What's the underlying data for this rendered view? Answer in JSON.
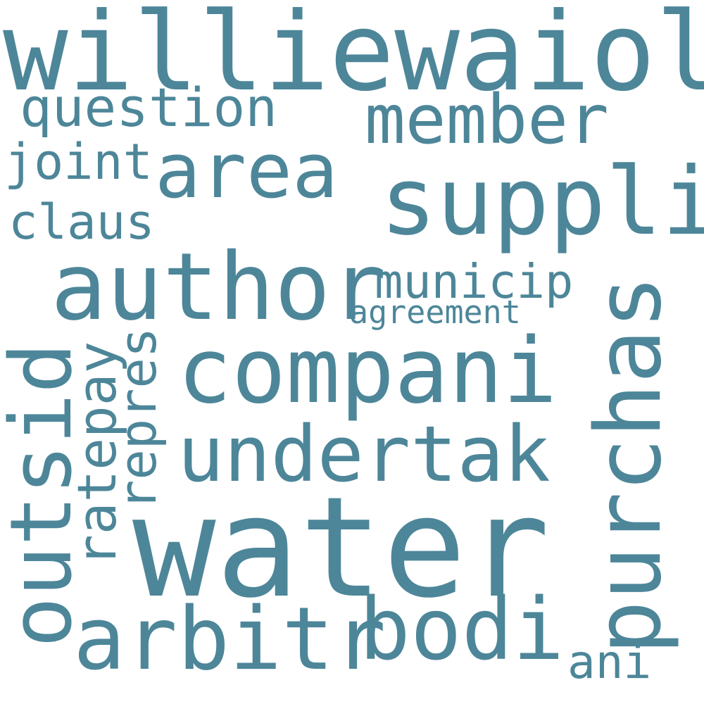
{
  "color": "#4d8699",
  "words": {
    "williewaiola": "williewaiola",
    "question": "question",
    "member": "member",
    "joint": "joint",
    "area": "area",
    "suppli": "suppli",
    "claus": "claus",
    "author": "author",
    "municip": "municip",
    "agreement": "agreement",
    "purchas": "purchas",
    "compani": "compani",
    "outsid": "outsid",
    "ratepay": "ratepay",
    "repres": "repres",
    "undertak": "undertak",
    "water": "water",
    "arbitr": "arbitr",
    "bodi": "bodi",
    "ani": "ani"
  }
}
